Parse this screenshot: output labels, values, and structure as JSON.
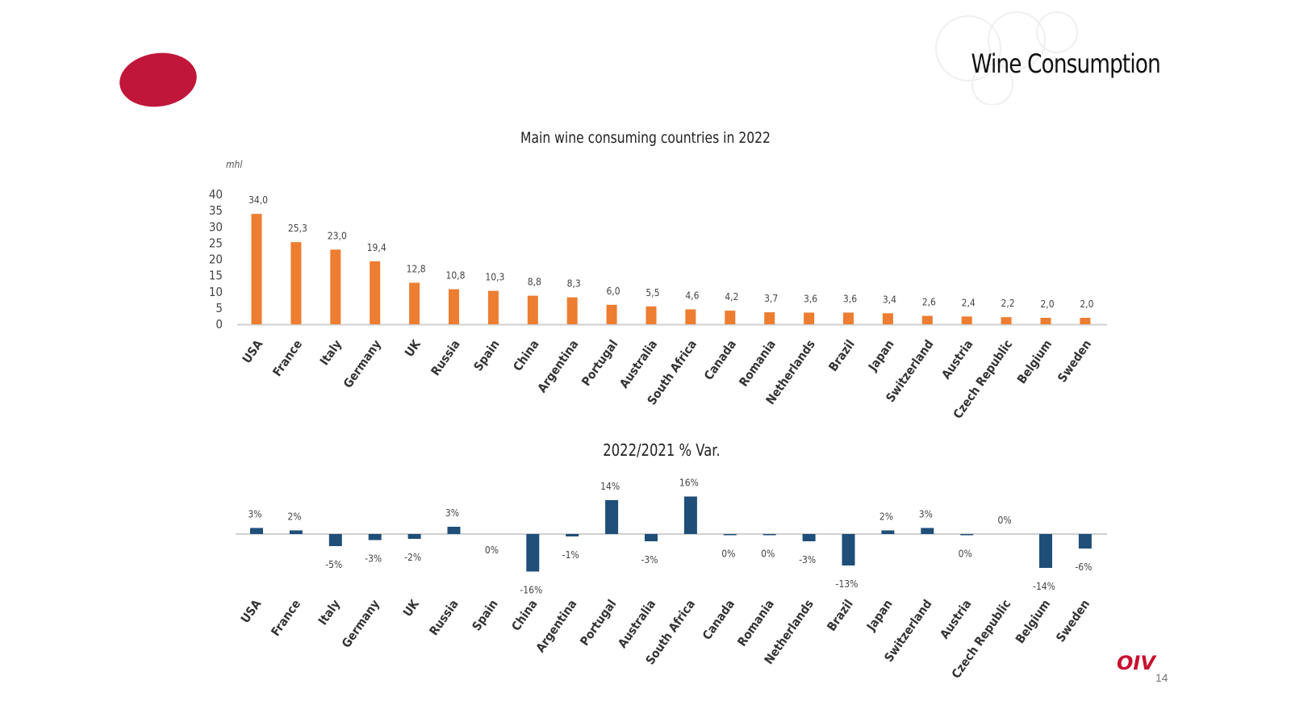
{
  "slide": {
    "title": "Wine Consumption",
    "page_number": "14",
    "org_logo": "OIV"
  },
  "colors": {
    "consumption_bar": "#ed7d31",
    "variation_bar": "#1f4e79",
    "brand_red": "#c0163a"
  },
  "chart_data": [
    {
      "type": "bar",
      "title": "Main wine consuming countries in 2022",
      "ylabel": "mhl",
      "xlabel": "",
      "ylim": [
        0,
        40
      ],
      "yticks": [
        "0",
        "5",
        "10",
        "15",
        "20",
        "25",
        "30",
        "35",
        "40"
      ],
      "categories": [
        "USA",
        "France",
        "Italy",
        "Germany",
        "UK",
        "Russia",
        "Spain",
        "China",
        "Argentina",
        "Portugal",
        "Australia",
        "South Africa",
        "Canada",
        "Romania",
        "Netherlands",
        "Brazil",
        "Japan",
        "Switzerland",
        "Austria",
        "Czech Republic",
        "Belgium",
        "Sweden"
      ],
      "values": [
        34.0,
        25.3,
        23.0,
        19.4,
        12.8,
        10.8,
        10.3,
        8.8,
        8.3,
        6.0,
        5.5,
        4.6,
        4.2,
        3.7,
        3.6,
        3.6,
        3.4,
        2.6,
        2.4,
        2.2,
        2.0,
        2.0
      ],
      "value_labels": [
        "34,0",
        "25,3",
        "23,0",
        "19,4",
        "12,8",
        "10,8",
        "10,3",
        "8,8",
        "8,3",
        "6,0",
        "5,5",
        "4,6",
        "4,2",
        "3,7",
        "3,6",
        "3,6",
        "3,4",
        "2,6",
        "2,4",
        "2,2",
        "2,0",
        "2,0"
      ],
      "grid": false
    },
    {
      "type": "bar",
      "title": "2022/2021 % Var.",
      "ylabel": "",
      "xlabel": "",
      "categories": [
        "USA",
        "France",
        "Italy",
        "Germany",
        "UK",
        "Russia",
        "Spain",
        "China",
        "Argentina",
        "Portugal",
        "Australia",
        "South Africa",
        "Canada",
        "Romania",
        "Netherlands",
        "Brazil",
        "Japan",
        "Switzerland",
        "Austria",
        "Czech Republic",
        "Belgium",
        "Sweden"
      ],
      "values": [
        2.5,
        1.5,
        -5.0,
        -2.5,
        -2.0,
        3.0,
        0.0,
        -15.5,
        -1.0,
        14.0,
        -3.0,
        15.5,
        -0.5,
        -0.4,
        -3.0,
        -13.0,
        1.5,
        2.5,
        -0.3,
        0.0,
        -14.0,
        -6.0
      ],
      "value_labels": [
        "3%",
        "2%",
        "-5%",
        "-3%",
        "-2%",
        "3%",
        "0%",
        "-16%",
        "-1%",
        "14%",
        "-3%",
        "16%",
        "0%",
        "0%",
        "-3%",
        "-13%",
        "2%",
        "3%",
        "0%",
        "0%",
        "-14%",
        "-6%"
      ],
      "grid": false
    }
  ]
}
